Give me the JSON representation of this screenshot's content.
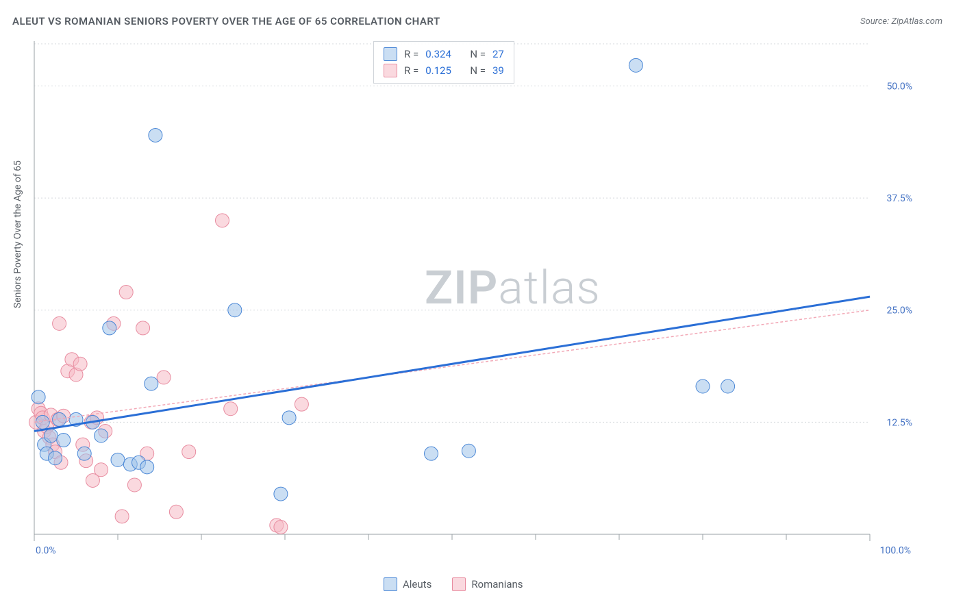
{
  "title": "ALEUT VS ROMANIAN SENIORS POVERTY OVER THE AGE OF 65 CORRELATION CHART",
  "source_label": "Source: ",
  "source_name": "ZipAtlas.com",
  "ylabel": "Seniors Poverty Over the Age of 65",
  "watermark_a": "ZIP",
  "watermark_b": "atlas",
  "chart": {
    "type": "scatter",
    "xlim": [
      0,
      100
    ],
    "ylim": [
      0,
      55
    ],
    "xtick_major": [
      0,
      100
    ],
    "xtick_minor": [
      10,
      20,
      30,
      40,
      50,
      60,
      70,
      80,
      90
    ],
    "xtick_labels": {
      "0": "0.0%",
      "100": "100.0%"
    },
    "ytick_values": [
      12.5,
      25.0,
      37.5,
      50.0
    ],
    "ytick_labels": [
      "12.5%",
      "25.0%",
      "37.5%",
      "50.0%"
    ],
    "grid_color": "#d5d9dd",
    "axis_color": "#9aa0a6",
    "background_color": "#ffffff",
    "marker_radius": 10,
    "series": [
      {
        "name": "Aleuts",
        "color_fill": "#9fc2ea",
        "color_stroke": "#4a87d6",
        "R": "0.324",
        "N": "27",
        "points": [
          [
            0.5,
            15.3
          ],
          [
            1.0,
            12.5
          ],
          [
            1.2,
            10.0
          ],
          [
            1.5,
            9.0
          ],
          [
            2.0,
            11.0
          ],
          [
            2.5,
            8.5
          ],
          [
            3.0,
            12.8
          ],
          [
            3.5,
            10.5
          ],
          [
            5.0,
            12.8
          ],
          [
            6.0,
            9.0
          ],
          [
            7.0,
            12.5
          ],
          [
            8.0,
            11.0
          ],
          [
            9.0,
            23.0
          ],
          [
            10.0,
            8.3
          ],
          [
            11.5,
            7.8
          ],
          [
            12.5,
            8.0
          ],
          [
            13.5,
            7.5
          ],
          [
            14.0,
            16.8
          ],
          [
            14.5,
            44.5
          ],
          [
            24.0,
            25.0
          ],
          [
            29.5,
            4.5
          ],
          [
            30.5,
            13.0
          ],
          [
            47.5,
            9.0
          ],
          [
            52.0,
            9.3
          ],
          [
            72.0,
            52.3
          ],
          [
            80.0,
            16.5
          ],
          [
            83.0,
            16.5
          ]
        ],
        "trend": {
          "x1": 0,
          "y1": 11.5,
          "x2": 100,
          "y2": 26.5,
          "stroke_width": 3
        }
      },
      {
        "name": "Romanians",
        "color_fill": "#f6b9c5",
        "color_stroke": "#e88ca0",
        "R": "0.125",
        "N": "39",
        "points": [
          [
            0.2,
            12.5
          ],
          [
            0.5,
            14.0
          ],
          [
            0.8,
            13.5
          ],
          [
            1.0,
            13.0
          ],
          [
            1.2,
            11.5
          ],
          [
            1.5,
            12.0
          ],
          [
            1.8,
            10.8
          ],
          [
            2.0,
            13.3
          ],
          [
            2.2,
            10.0
          ],
          [
            2.5,
            9.2
          ],
          [
            2.8,
            12.8
          ],
          [
            3.0,
            23.5
          ],
          [
            3.2,
            8.0
          ],
          [
            3.5,
            13.2
          ],
          [
            4.0,
            18.2
          ],
          [
            4.5,
            19.5
          ],
          [
            5.0,
            17.8
          ],
          [
            5.5,
            19.0
          ],
          [
            5.8,
            10.0
          ],
          [
            6.2,
            8.2
          ],
          [
            6.8,
            12.5
          ],
          [
            7.0,
            6.0
          ],
          [
            7.5,
            13.0
          ],
          [
            8.0,
            7.2
          ],
          [
            8.5,
            11.5
          ],
          [
            9.5,
            23.5
          ],
          [
            10.5,
            2.0
          ],
          [
            11.0,
            27.0
          ],
          [
            12.0,
            5.5
          ],
          [
            13.0,
            23.0
          ],
          [
            13.5,
            9.0
          ],
          [
            15.5,
            17.5
          ],
          [
            17.0,
            2.5
          ],
          [
            18.5,
            9.2
          ],
          [
            22.5,
            35.0
          ],
          [
            23.5,
            14.0
          ],
          [
            29.0,
            1.0
          ],
          [
            29.5,
            0.8
          ],
          [
            32.0,
            14.5
          ]
        ],
        "trend": {
          "x1": 0,
          "y1": 12.5,
          "x2": 100,
          "y2": 25.0,
          "stroke_width": 1.5,
          "dash": "4 3"
        }
      }
    ]
  },
  "stats_labels": {
    "R": "R =",
    "N": "N ="
  },
  "legend_bottom": [
    {
      "swatch": "blue",
      "label": "Aleuts"
    },
    {
      "swatch": "pink",
      "label": "Romanians"
    }
  ]
}
